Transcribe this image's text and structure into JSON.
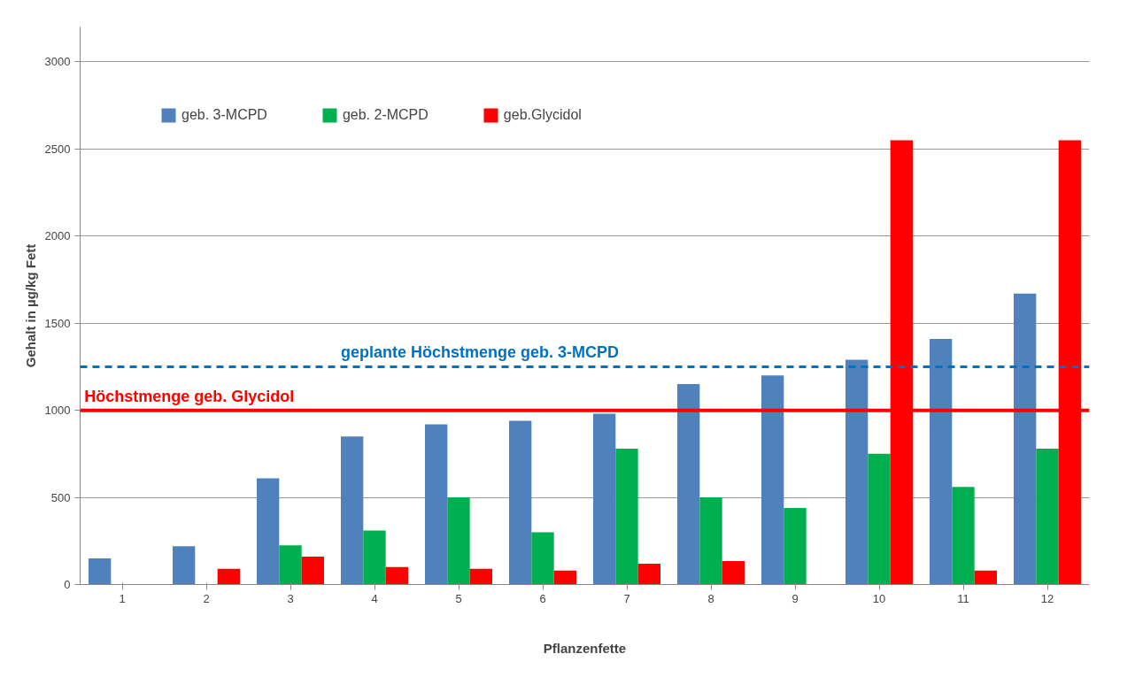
{
  "chart_data": {
    "type": "bar",
    "xlabel": "Pflanzenfette",
    "ylabel": "Gehalt in µg/kg Fett",
    "categories": [
      "1",
      "2",
      "3",
      "4",
      "5",
      "6",
      "7",
      "8",
      "9",
      "10",
      "11",
      "12"
    ],
    "series": [
      {
        "name": "geb. 3-MCPD",
        "color": "#4f81bd",
        "values": [
          150,
          220,
          610,
          850,
          920,
          940,
          980,
          1150,
          1200,
          1290,
          1410,
          1670
        ]
      },
      {
        "name": "geb. 2-MCPD",
        "color": "#00b050",
        "values": [
          null,
          null,
          225,
          310,
          500,
          300,
          780,
          500,
          440,
          750,
          560,
          780
        ]
      },
      {
        "name": "geb.Glycidol",
        "color": "#ff0000",
        "values": [
          null,
          90,
          160,
          100,
          90,
          80,
          120,
          135,
          null,
          2550,
          80,
          2550
        ]
      }
    ],
    "ylim": [
      0,
      3200
    ],
    "yticks": [
      0,
      500,
      1000,
      1500,
      2000,
      2500,
      3000
    ],
    "grid": "y",
    "legend": "top left",
    "ref_lines": [
      {
        "axis": "y",
        "value": 1250,
        "label": "geplante Höchstmenge geb. 3-MCPD",
        "color": "#0070c0",
        "line_style": "dashed"
      },
      {
        "axis": "y",
        "value": 1000,
        "label": "Höchstmenge geb. Glycidol",
        "color": "#ff0000",
        "line_style": "solid"
      }
    ]
  }
}
